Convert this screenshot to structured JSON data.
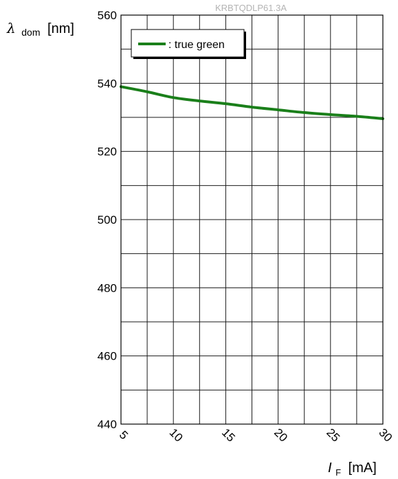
{
  "chart_data": {
    "type": "line",
    "code_label": "KRBTQDLP61.3A",
    "ylabel": {
      "symbol": "λ",
      "subscript": "dom",
      "unit": "[nm]"
    },
    "xlabel": {
      "symbol": "I",
      "subscript": "F",
      "unit": "[mA]"
    },
    "xlim": [
      5,
      30
    ],
    "ylim": [
      440,
      560
    ],
    "x_ticks": [
      5,
      10,
      15,
      20,
      25,
      30
    ],
    "x_tick_labels": [
      "5",
      "10",
      "15",
      "20",
      "25",
      "30"
    ],
    "y_ticks": [
      440,
      460,
      480,
      500,
      520,
      540,
      560
    ],
    "y_tick_labels": [
      "440",
      "460",
      "480",
      "500",
      "520",
      "540",
      "560"
    ],
    "x_minor_grid_step": 2.5,
    "y_minor_grid_step": 10,
    "grid": true,
    "legend_position": "top-left",
    "series": [
      {
        "name": ": true green",
        "color": "#1a7f1a",
        "x": [
          5,
          7.5,
          10,
          12.5,
          15,
          17.5,
          20,
          22.5,
          25,
          27.5,
          30
        ],
        "y": [
          539,
          537.5,
          535.8,
          534.8,
          534,
          533,
          532.2,
          531.4,
          530.8,
          530.3,
          529.6
        ]
      }
    ]
  }
}
